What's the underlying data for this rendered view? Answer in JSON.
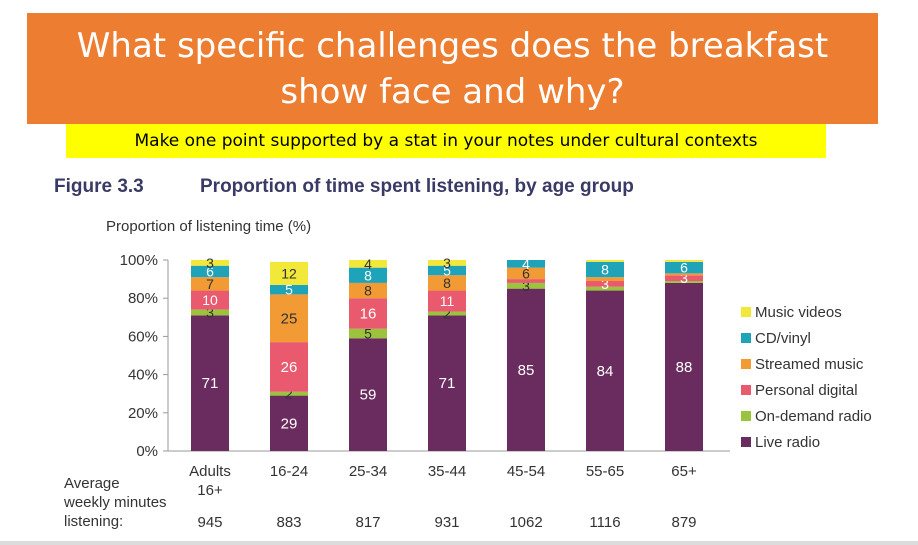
{
  "slide": {
    "title": "What specific challenges does the breakfast show face and why?",
    "title_line1": "What specific challenges does the breakfast",
    "title_line2": "show face and why?",
    "instruction": "Make one point supported by a stat in your notes under cultural contexts",
    "colors": {
      "banner": "#ed7d31",
      "highlight": "#ffff00"
    }
  },
  "chart_data": {
    "type": "bar",
    "stacked": true,
    "figure_label": "Figure 3.3",
    "title": "Proportion of time spent listening, by age group",
    "ylabel": "Proportion of listening time (%)",
    "ylim": [
      0,
      100
    ],
    "yticks": [
      "0%",
      "20%",
      "40%",
      "60%",
      "80%",
      "100%"
    ],
    "categories": [
      "Adults 16+",
      "16-24",
      "25-34",
      "35-44",
      "45-54",
      "55-65",
      "65+"
    ],
    "series": [
      {
        "name": "Live radio",
        "color": "#6a2c5e",
        "values": [
          71,
          29,
          59,
          71,
          85,
          84,
          88
        ]
      },
      {
        "name": "On-demand radio",
        "color": "#9bc33c",
        "values": [
          3,
          2,
          5,
          2,
          3,
          2,
          1
        ]
      },
      {
        "name": "Personal digital",
        "color": "#ea5a6e",
        "values": [
          10,
          26,
          16,
          11,
          2,
          3,
          3
        ]
      },
      {
        "name": "Streamed music",
        "color": "#f29a33",
        "values": [
          7,
          25,
          8,
          8,
          6,
          2,
          1
        ]
      },
      {
        "name": "CD/vinyl",
        "color": "#1fa3b8",
        "values": [
          6,
          5,
          8,
          5,
          4,
          8,
          6
        ]
      },
      {
        "name": "Music videos",
        "color": "#f2e83a",
        "values": [
          3,
          12,
          4,
          3,
          0,
          1,
          1
        ]
      }
    ],
    "data_labels": [
      [
        "71",
        "3",
        "10",
        "7",
        "6",
        "3"
      ],
      [
        "29",
        "2",
        "26",
        "25",
        "5",
        "12"
      ],
      [
        "59",
        "5",
        "16",
        "8",
        "8",
        "4"
      ],
      [
        "71",
        "2",
        "11",
        "8",
        "5",
        "3"
      ],
      [
        "85",
        "3",
        "",
        "6",
        "4",
        ""
      ],
      [
        "84",
        "",
        "3",
        "",
        "8",
        ""
      ],
      [
        "88",
        "",
        "3",
        "",
        "6",
        ""
      ]
    ],
    "legend_position": "right",
    "row_label": "Average\nweekly minutes\nlistening:",
    "weekly_minutes": [
      "945",
      "883",
      "817",
      "931",
      "1062",
      "1116",
      "879"
    ]
  }
}
